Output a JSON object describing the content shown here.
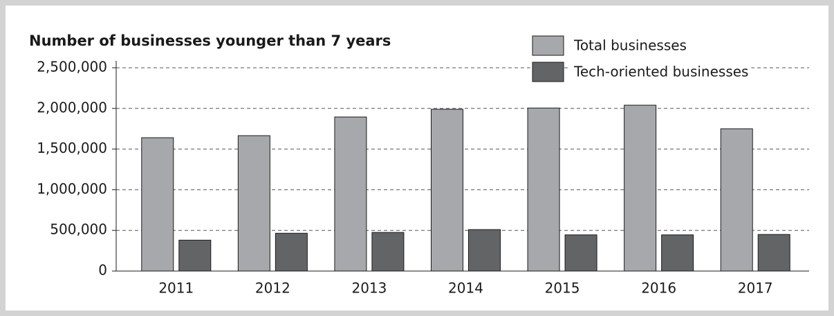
{
  "chart_data": {
    "type": "bar",
    "title": "Number of businesses younger than 7 years",
    "categories": [
      "2011",
      "2012",
      "2013",
      "2014",
      "2015",
      "2016",
      "2017"
    ],
    "series": [
      {
        "name": "Total businesses",
        "color": "#a7a8ab",
        "values": [
          1640000,
          1665000,
          1895000,
          1990000,
          2005000,
          2040000,
          1750000
        ]
      },
      {
        "name": "Tech-oriented businesses",
        "color": "#636466",
        "values": [
          380000,
          465000,
          475000,
          510000,
          445000,
          445000,
          450000
        ]
      }
    ],
    "ylim": [
      0,
      2500000
    ],
    "yticks": [
      0,
      {
        "value": 500000,
        "label": "500,000"
      },
      {
        "value": 1000000,
        "label": "1,000,000"
      },
      {
        "value": 1500000,
        "label": "1,500,000"
      },
      {
        "value": 2000000,
        "label": "2,000,000"
      },
      {
        "value": 2500000,
        "label": "2,500,000"
      }
    ],
    "grid": true,
    "legend": "top-right"
  }
}
